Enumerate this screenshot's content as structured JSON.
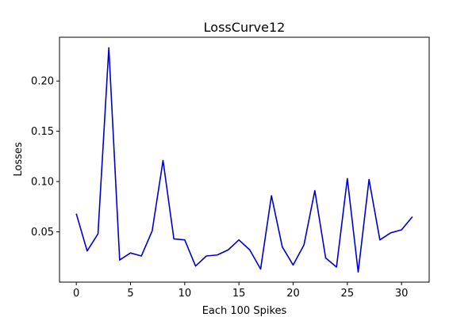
{
  "chart_data": {
    "type": "line",
    "title": "LossCurve12",
    "xlabel": "Each 100 Spikes",
    "ylabel": "Losses",
    "xlim": [
      -1.55,
      32.55
    ],
    "ylim": [
      0.0,
      0.2435
    ],
    "xticks": [
      0,
      5,
      10,
      15,
      20,
      25,
      30
    ],
    "yticks": [
      0.05,
      0.1,
      0.15,
      0.2
    ],
    "ytick_labels": [
      "0.05",
      "0.10",
      "0.15",
      "0.20"
    ],
    "grid": false,
    "series": [
      {
        "color": "#0000cc",
        "x": [
          0,
          1,
          2,
          3,
          4,
          5,
          6,
          7,
          8,
          9,
          10,
          11,
          12,
          13,
          14,
          15,
          16,
          17,
          18,
          19,
          20,
          21,
          22,
          23,
          24,
          25,
          26,
          27,
          28,
          29,
          30,
          31
        ],
        "y": [
          0.068,
          0.031,
          0.048,
          0.233,
          0.022,
          0.029,
          0.026,
          0.051,
          0.121,
          0.043,
          0.042,
          0.016,
          0.026,
          0.027,
          0.032,
          0.042,
          0.032,
          0.013,
          0.086,
          0.035,
          0.017,
          0.037,
          0.091,
          0.024,
          0.015,
          0.103,
          0.01,
          0.102,
          0.042,
          0.049,
          0.052,
          0.065
        ]
      }
    ]
  }
}
